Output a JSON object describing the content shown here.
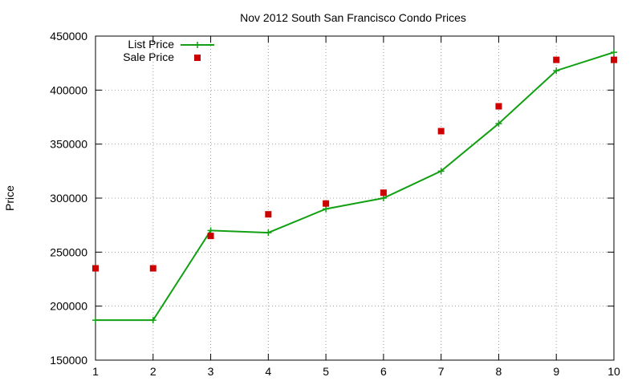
{
  "chart_data": {
    "type": "line",
    "title": "Nov 2012 South San Francisco Condo Prices",
    "xlabel": "",
    "ylabel": "Price",
    "xlim": [
      1,
      10
    ],
    "ylim": [
      150000,
      450000
    ],
    "xticks": [
      1,
      2,
      3,
      4,
      5,
      6,
      7,
      8,
      9,
      10
    ],
    "yticks": [
      150000,
      200000,
      250000,
      300000,
      350000,
      400000,
      450000
    ],
    "grid": true,
    "legend_position": "top-left",
    "series": [
      {
        "name": "List Price",
        "kind": "line-with-plus-markers",
        "color": "#11a011",
        "x": [
          1,
          2,
          3,
          4,
          5,
          6,
          7,
          8,
          9,
          10
        ],
        "y": [
          187000,
          187000,
          270000,
          268000,
          290000,
          300000,
          325000,
          369000,
          418000,
          435000
        ]
      },
      {
        "name": "Sale Price",
        "kind": "square-points",
        "color": "#cc0000",
        "x": [
          1,
          2,
          3,
          4,
          5,
          6,
          7,
          8,
          9,
          10
        ],
        "y": [
          235000,
          235000,
          265000,
          285000,
          295000,
          305000,
          362000,
          385000,
          428000,
          428000
        ]
      }
    ]
  }
}
